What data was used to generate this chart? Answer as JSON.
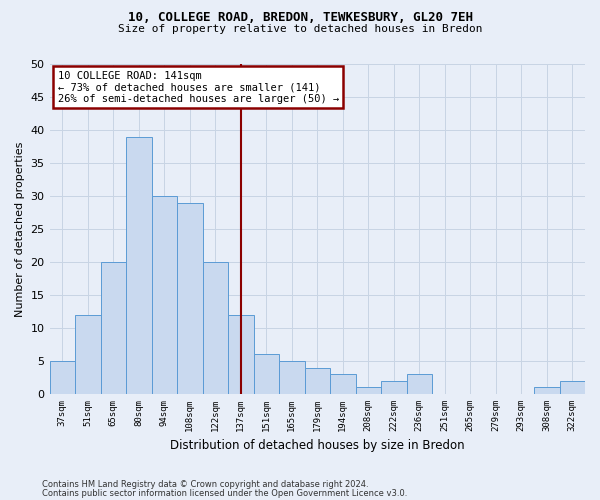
{
  "title1": "10, COLLEGE ROAD, BREDON, TEWKESBURY, GL20 7EH",
  "title2": "Size of property relative to detached houses in Bredon",
  "xlabel": "Distribution of detached houses by size in Bredon",
  "ylabel": "Number of detached properties",
  "categories": [
    "37sqm",
    "51sqm",
    "65sqm",
    "80sqm",
    "94sqm",
    "108sqm",
    "122sqm",
    "137sqm",
    "151sqm",
    "165sqm",
    "179sqm",
    "194sqm",
    "208sqm",
    "222sqm",
    "236sqm",
    "251sqm",
    "265sqm",
    "279sqm",
    "293sqm",
    "308sqm",
    "322sqm"
  ],
  "values": [
    5,
    12,
    20,
    39,
    30,
    29,
    20,
    12,
    6,
    5,
    4,
    3,
    1,
    2,
    3,
    0,
    0,
    0,
    0,
    1,
    2
  ],
  "bar_color": "#c9d9ef",
  "bar_edge_color": "#5b9bd5",
  "vline_index": 7,
  "vline_color": "#8b0000",
  "annotation_line1": "10 COLLEGE ROAD: 141sqm",
  "annotation_line2": "← 73% of detached houses are smaller (141)",
  "annotation_line3": "26% of semi-detached houses are larger (50) →",
  "annotation_box_facecolor": "#ffffff",
  "annotation_box_edgecolor": "#8b0000",
  "ylim": [
    0,
    50
  ],
  "yticks": [
    0,
    5,
    10,
    15,
    20,
    25,
    30,
    35,
    40,
    45,
    50
  ],
  "grid_color": "#c8d4e4",
  "bg_color": "#e8eef8",
  "footer1": "Contains HM Land Registry data © Crown copyright and database right 2024.",
  "footer2": "Contains public sector information licensed under the Open Government Licence v3.0."
}
